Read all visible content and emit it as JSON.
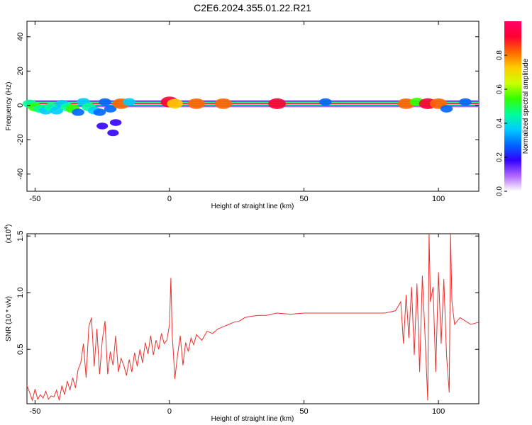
{
  "title": "C2E6.2024.355.01.22.R21",
  "chart_data": [
    {
      "type": "heatmap",
      "xlabel": "Height of straight line (km)",
      "ylabel": "Frequency (Hz)",
      "xlim": [
        -53,
        115
      ],
      "ylim": [
        -50,
        49
      ],
      "xticks": [
        -50,
        0,
        50,
        100
      ],
      "yticks": [
        -40,
        -20,
        0,
        20,
        40
      ],
      "colorbar": {
        "label": "Normalized spectral amplitude",
        "range": [
          0,
          1
        ],
        "ticks": [
          0.0,
          0.2,
          0.4,
          0.6,
          0.8
        ],
        "colors": [
          "#ffffff",
          "#b066ff",
          "#3300ff",
          "#0066ff",
          "#00ccff",
          "#00ff99",
          "#33ff00",
          "#ccff00",
          "#ffcc00",
          "#ff6600",
          "#ff0033",
          "#ff0066"
        ]
      },
      "cells": [
        {
          "x": -52,
          "f": 1,
          "a": 0.45
        },
        {
          "x": -50,
          "f": -1,
          "a": 0.5
        },
        {
          "x": -48,
          "f": -2,
          "a": 0.45
        },
        {
          "x": -46,
          "f": -3,
          "a": 0.4
        },
        {
          "x": -44,
          "f": -1,
          "a": 0.45
        },
        {
          "x": -42,
          "f": -3,
          "a": 0.4
        },
        {
          "x": -40,
          "f": 1,
          "a": 0.35
        },
        {
          "x": -38,
          "f": -1,
          "a": 0.45
        },
        {
          "x": -36,
          "f": -2,
          "a": 0.5
        },
        {
          "x": -34,
          "f": -4,
          "a": 0.3
        },
        {
          "x": -32,
          "f": 2,
          "a": 0.4
        },
        {
          "x": -30,
          "f": -1,
          "a": 0.45
        },
        {
          "x": -28,
          "f": -3,
          "a": 0.35
        },
        {
          "x": -26,
          "f": -4,
          "a": 0.3
        },
        {
          "x": -24,
          "f": 2,
          "a": 0.3
        },
        {
          "x": -22,
          "f": -2,
          "a": 0.3
        },
        {
          "x": -20,
          "f": -10,
          "a": 0.2
        },
        {
          "x": -25,
          "f": -12,
          "a": 0.18
        },
        {
          "x": -21,
          "f": -16,
          "a": 0.18
        },
        {
          "x": -18,
          "f": 1,
          "a": 0.85
        },
        {
          "x": -15,
          "f": 2,
          "a": 0.35
        },
        {
          "x": 0,
          "f": 2,
          "a": 0.9
        },
        {
          "x": 2,
          "f": 1,
          "a": 0.7
        },
        {
          "x": 10,
          "f": 1,
          "a": 0.85
        },
        {
          "x": 20,
          "f": 1,
          "a": 0.85
        },
        {
          "x": 40,
          "f": 1,
          "a": 0.9
        },
        {
          "x": 58,
          "f": 2,
          "a": 0.3
        },
        {
          "x": 88,
          "f": 1,
          "a": 0.85
        },
        {
          "x": 92,
          "f": 2,
          "a": 0.5
        },
        {
          "x": 96,
          "f": 1,
          "a": 0.9
        },
        {
          "x": 100,
          "f": 1,
          "a": 0.85
        },
        {
          "x": 103,
          "f": -2,
          "a": 0.3
        },
        {
          "x": 110,
          "f": 2,
          "a": 0.3
        }
      ],
      "band": {
        "x_range": [
          -53,
          115
        ],
        "f": 1,
        "a": 0.85
      }
    },
    {
      "type": "line",
      "xlabel": "Height of straight line (km)",
      "ylabel": "SNR (10 * v/v)",
      "yscale_label": "(x10",
      "yscale_exp": "4",
      "yscale_close": ")",
      "xlim": [
        -53,
        115
      ],
      "ylim": [
        0.02,
        1.52
      ],
      "xticks": [
        -50,
        0,
        50,
        100
      ],
      "yticks": [
        0.5,
        1.0,
        1.5
      ],
      "ytick_labels": [
        "0.5",
        "1.0",
        "1.5"
      ],
      "color": "#e8312e",
      "series": [
        {
          "x": [
            -53,
            -52,
            -51,
            -50,
            -49,
            -48,
            -47,
            -46,
            -45,
            -44,
            -43,
            -42,
            -41,
            -40,
            -39,
            -38,
            -37,
            -36,
            -35,
            -34,
            -33,
            -32,
            -31,
            -30,
            -29,
            -28,
            -27,
            -26,
            -25,
            -24,
            -23,
            -22,
            -21,
            -20,
            -19,
            -18,
            -17,
            -16,
            -15,
            -14,
            -13,
            -12,
            -11,
            -10,
            -9,
            -8,
            -7,
            -6,
            -5,
            -4,
            -3,
            -2,
            -1,
            0,
            0.5,
            1,
            1.5,
            2,
            3,
            4,
            5,
            6,
            7,
            8,
            9,
            10,
            12,
            14,
            16,
            18,
            20,
            22,
            24,
            26,
            28,
            30,
            33,
            36,
            40,
            45,
            50,
            55,
            60,
            65,
            70,
            75,
            80,
            84,
            86,
            87,
            88,
            89,
            90,
            91,
            92,
            93,
            94,
            95,
            96,
            96.5,
            97,
            98,
            99,
            100,
            101,
            102,
            103,
            104,
            104.5,
            105,
            106,
            108,
            110,
            112,
            115
          ],
          "y": [
            0.18,
            0.12,
            0.05,
            0.15,
            0.06,
            0.1,
            0.07,
            0.13,
            0.06,
            0.09,
            0.08,
            0.14,
            0.05,
            0.18,
            0.1,
            0.22,
            0.14,
            0.25,
            0.16,
            0.32,
            0.38,
            0.55,
            0.25,
            0.7,
            0.78,
            0.35,
            0.68,
            0.28,
            0.58,
            0.75,
            0.28,
            0.48,
            0.36,
            0.62,
            0.3,
            0.42,
            0.36,
            0.27,
            0.41,
            0.3,
            0.47,
            0.35,
            0.5,
            0.38,
            0.56,
            0.46,
            0.62,
            0.45,
            0.58,
            0.5,
            0.64,
            0.55,
            0.58,
            0.72,
            1.13,
            0.62,
            0.45,
            0.24,
            0.45,
            0.62,
            0.36,
            0.56,
            0.48,
            0.6,
            0.54,
            0.63,
            0.58,
            0.66,
            0.64,
            0.68,
            0.7,
            0.72,
            0.74,
            0.75,
            0.78,
            0.79,
            0.8,
            0.8,
            0.82,
            0.81,
            0.82,
            0.82,
            0.82,
            0.82,
            0.82,
            0.82,
            0.82,
            0.84,
            0.92,
            0.55,
            0.98,
            0.6,
            1.05,
            0.45,
            1.08,
            0.3,
            1.15,
            0.62,
            0.05,
            1.52,
            0.92,
            1.05,
            0.3,
            1.18,
            0.55,
            1.12,
            0.45,
            0.12,
            1.52,
            0.92,
            0.72,
            0.78,
            0.75,
            0.72,
            0.74
          ]
        }
      ]
    }
  ]
}
